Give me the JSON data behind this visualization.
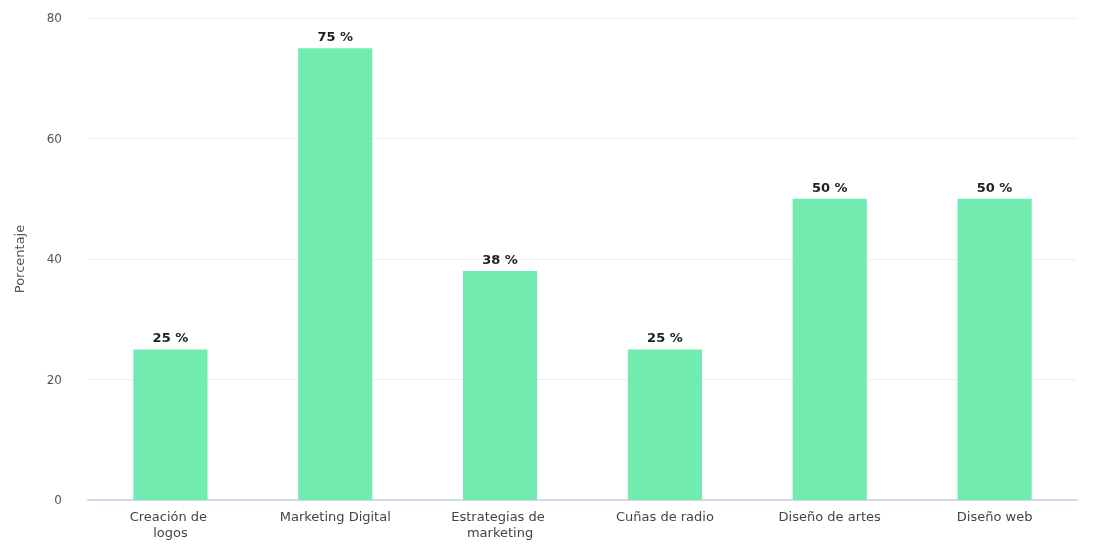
{
  "chart_data": {
    "type": "bar",
    "ylabel": "Porcentaje",
    "categories": [
      "Creación de logos",
      "Marketing Digital",
      "Estrategias de marketing",
      "Cuñas de radio",
      "Diseño de artes",
      "Diseño web"
    ],
    "values": [
      25,
      75,
      38,
      25,
      50,
      50
    ],
    "value_labels": [
      "25 %",
      "75 %",
      "38 %",
      "25 %",
      "50 %",
      "50 %"
    ],
    "color": "#72ebb0",
    "ylim": [
      0,
      80
    ],
    "yticks": [
      0,
      20,
      40,
      60,
      80
    ],
    "grid": "y"
  }
}
